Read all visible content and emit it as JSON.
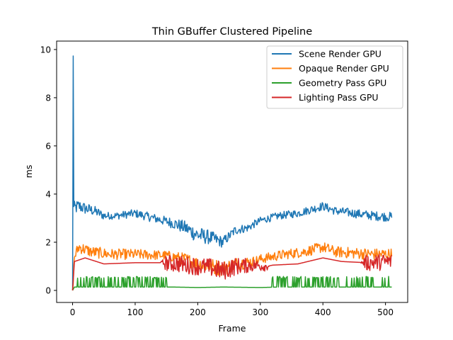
{
  "chart_data": {
    "type": "line",
    "title": "Thin GBuffer Clustered Pipeline",
    "xlabel": "Frame",
    "ylabel": "ms",
    "xlim": [
      -25.5,
      535.5
    ],
    "ylim": [
      -0.5,
      10.35
    ],
    "xticks": [
      0,
      100,
      200,
      300,
      400,
      500
    ],
    "yticks": [
      0,
      2,
      4,
      6,
      8,
      10
    ],
    "grid": false,
    "legend_position": "top-right",
    "n_frames": 511,
    "series": [
      {
        "name": "Scene Render GPU",
        "color": "#1f77b4",
        "profile": [
          [
            0,
            0.0
          ],
          [
            1,
            9.85
          ],
          [
            2,
            3.4
          ],
          [
            10,
            3.5
          ],
          [
            20,
            3.4
          ],
          [
            35,
            3.3
          ],
          [
            50,
            3.1
          ],
          [
            70,
            3.1
          ],
          [
            100,
            3.2
          ],
          [
            130,
            3.0
          ],
          [
            160,
            2.8
          ],
          [
            180,
            2.6
          ],
          [
            200,
            2.3
          ],
          [
            220,
            2.2
          ],
          [
            240,
            2.0
          ],
          [
            260,
            2.5
          ],
          [
            280,
            2.6
          ],
          [
            300,
            2.9
          ],
          [
            330,
            3.1
          ],
          [
            360,
            3.2
          ],
          [
            400,
            3.5
          ],
          [
            420,
            3.3
          ],
          [
            450,
            3.2
          ],
          [
            480,
            3.1
          ],
          [
            510,
            3.05
          ]
        ],
        "noise": [
          [
            0,
            0.3
          ],
          [
            60,
            0.15
          ],
          [
            150,
            0.2
          ],
          [
            200,
            0.35
          ],
          [
            250,
            0.2
          ],
          [
            300,
            0.15
          ],
          [
            510,
            0.2
          ]
        ]
      },
      {
        "name": "Opaque Render GPU",
        "color": "#ff7f0e",
        "profile": [
          [
            0,
            0.0
          ],
          [
            3,
            1.4
          ],
          [
            10,
            1.8
          ],
          [
            30,
            1.6
          ],
          [
            60,
            1.5
          ],
          [
            100,
            1.5
          ],
          [
            150,
            1.45
          ],
          [
            180,
            1.3
          ],
          [
            200,
            1.1
          ],
          [
            220,
            1.0
          ],
          [
            240,
            0.9
          ],
          [
            260,
            1.1
          ],
          [
            290,
            1.2
          ],
          [
            300,
            1.3
          ],
          [
            340,
            1.5
          ],
          [
            370,
            1.6
          ],
          [
            400,
            1.8
          ],
          [
            420,
            1.6
          ],
          [
            450,
            1.55
          ],
          [
            480,
            1.5
          ],
          [
            510,
            1.5
          ]
        ],
        "noise": [
          [
            0,
            0.25
          ],
          [
            150,
            0.2
          ],
          [
            230,
            0.35
          ],
          [
            300,
            0.2
          ],
          [
            510,
            0.25
          ]
        ]
      },
      {
        "name": "Geometry Pass GPU",
        "color": "#2ca02c",
        "profile": [
          [
            0,
            0.0
          ],
          [
            3,
            0.14
          ],
          [
            160,
            0.14
          ],
          [
            200,
            0.12
          ],
          [
            240,
            0.14
          ],
          [
            300,
            0.12
          ],
          [
            330,
            0.14
          ],
          [
            510,
            0.14
          ]
        ],
        "spikes": [
          [
            8,
            150,
            0.58
          ],
          [
            300,
            300,
            0.55
          ],
          [
            318,
            505,
            0.58
          ]
        ]
      },
      {
        "name": "Lighting Pass GPU",
        "color": "#d62728",
        "profile": [
          [
            0,
            0.0
          ],
          [
            3,
            1.2
          ],
          [
            20,
            1.35
          ],
          [
            50,
            1.1
          ],
          [
            100,
            1.15
          ],
          [
            140,
            1.15
          ],
          [
            170,
            1.1
          ],
          [
            200,
            1.0
          ],
          [
            220,
            0.95
          ],
          [
            240,
            0.8
          ],
          [
            260,
            1.0
          ],
          [
            290,
            1.05
          ],
          [
            310,
            1.0
          ],
          [
            320,
            1.05
          ],
          [
            360,
            1.1
          ],
          [
            400,
            1.35
          ],
          [
            430,
            1.2
          ],
          [
            470,
            1.15
          ],
          [
            510,
            1.2
          ]
        ],
        "noise": [
          [
            0,
            0.0
          ],
          [
            140,
            0.0
          ],
          [
            150,
            0.35
          ],
          [
            250,
            0.4
          ],
          [
            310,
            0.2
          ],
          [
            315,
            0.0
          ],
          [
            460,
            0.0
          ],
          [
            470,
            0.35
          ],
          [
            510,
            0.35
          ]
        ]
      }
    ]
  }
}
